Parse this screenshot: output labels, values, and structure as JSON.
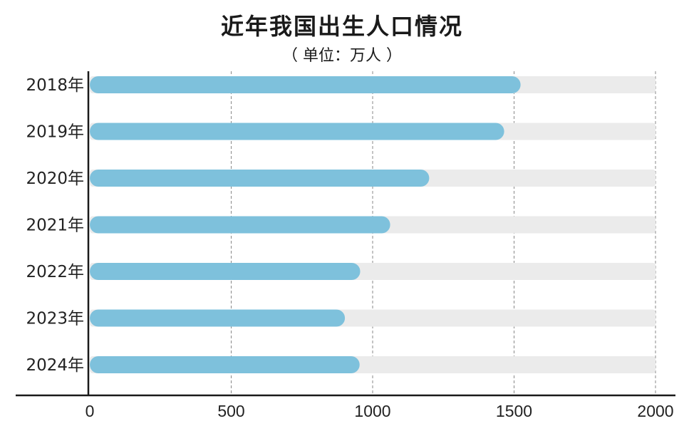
{
  "chart_data": {
    "type": "bar",
    "orientation": "horizontal",
    "title": "近年我国出生人口情况",
    "subtitle": "（ 单位：万人 ）",
    "categories": [
      "2018年",
      "2019年",
      "2020年",
      "2021年",
      "2022年",
      "2023年",
      "2024年"
    ],
    "series": [
      {
        "values": [
          1523,
          1465,
          1200,
          1062,
          956,
          902,
          954
        ]
      }
    ],
    "xlim": [
      0,
      2000
    ],
    "xticks": [
      "0",
      "500",
      "1000",
      "1500",
      "2000"
    ],
    "grid": "vertical dashed",
    "colors": {
      "bar": "#7ec1dc",
      "track": "#ebebeb",
      "axis": "#1a1a1a",
      "grid": "#888888"
    }
  }
}
